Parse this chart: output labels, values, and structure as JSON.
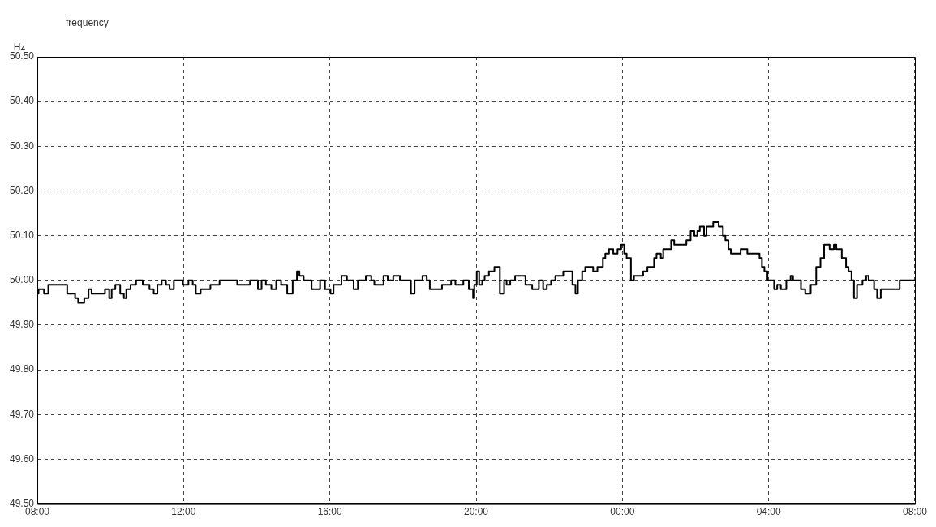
{
  "chart_data": {
    "type": "step",
    "title": "frequency",
    "ylabel": "Hz",
    "x": [
      "2000-01-01T08:00",
      "2000-01-01T08:02",
      "2000-01-01T08:11",
      "2000-01-01T08:18",
      "2000-01-01T08:49",
      "2000-01-01T09:02",
      "2000-01-01T09:07",
      "2000-01-01T09:17",
      "2000-01-01T09:24",
      "2000-01-01T09:29",
      "2000-01-01T09:51",
      "2000-01-01T09:58",
      "2000-01-01T10:02",
      "2000-01-01T10:08",
      "2000-01-01T10:16",
      "2000-01-01T10:22",
      "2000-01-01T10:26",
      "2000-01-01T10:33",
      "2000-01-01T10:42",
      "2000-01-01T10:53",
      "2000-01-01T11:04",
      "2000-01-01T11:11",
      "2000-01-01T11:17",
      "2000-01-01T11:24",
      "2000-01-01T11:31",
      "2000-01-01T11:37",
      "2000-01-01T11:44",
      "2000-01-01T11:59",
      "2000-01-01T12:08",
      "2000-01-01T12:15",
      "2000-01-01T12:20",
      "2000-01-01T12:28",
      "2000-01-01T12:44",
      "2000-01-01T12:59",
      "2000-01-01T13:28",
      "2000-01-01T13:49",
      "2000-01-01T14:02",
      "2000-01-01T14:08",
      "2000-01-01T14:15",
      "2000-01-01T14:24",
      "2000-01-01T14:32",
      "2000-01-01T14:40",
      "2000-01-01T14:50",
      "2000-01-01T14:59",
      "2000-01-01T15:06",
      "2000-01-01T15:10",
      "2000-01-01T15:17",
      "2000-01-01T15:30",
      "2000-01-01T15:44",
      "2000-01-01T15:52",
      "2000-01-01T16:01",
      "2000-01-01T16:06",
      "2000-01-01T16:13",
      "2000-01-01T16:19",
      "2000-01-01T16:28",
      "2000-01-01T16:39",
      "2000-01-01T16:46",
      "2000-01-01T16:59",
      "2000-01-01T17:08",
      "2000-01-01T17:13",
      "2000-01-01T17:28",
      "2000-01-01T17:35",
      "2000-01-01T17:44",
      "2000-01-01T17:55",
      "2000-01-01T18:13",
      "2000-01-01T18:19",
      "2000-01-01T18:32",
      "2000-01-01T18:39",
      "2000-01-01T18:44",
      "2000-01-01T19:04",
      "2000-01-01T19:19",
      "2000-01-01T19:26",
      "2000-01-01T19:39",
      "2000-01-01T19:48",
      "2000-01-01T19:55",
      "2000-01-01T19:57",
      "2000-01-01T20:01",
      "2000-01-01T20:05",
      "2000-01-01T20:10",
      "2000-01-01T20:14",
      "2000-01-01T20:21",
      "2000-01-01T20:30",
      "2000-01-01T20:39",
      "2000-01-01T20:46",
      "2000-01-01T20:50",
      "2000-01-01T20:56",
      "2000-01-01T21:04",
      "2000-01-01T21:21",
      "2000-01-01T21:32",
      "2000-01-01T21:43",
      "2000-01-01T21:50",
      "2000-01-01T21:56",
      "2000-01-01T22:03",
      "2000-01-01T22:10",
      "2000-01-01T22:19",
      "2000-01-01T22:23",
      "2000-01-01T22:38",
      "2000-01-01T22:43",
      "2000-01-01T22:47",
      "2000-01-01T22:54",
      "2000-01-01T22:59",
      "2000-01-01T23:12",
      "2000-01-01T23:19",
      "2000-01-01T23:28",
      "2000-01-01T23:32",
      "2000-01-01T23:38",
      "2000-01-01T23:45",
      "2000-01-01T23:52",
      "2000-01-01T23:58",
      "2000-01-02T00:03",
      "2000-01-02T00:07",
      "2000-01-02T00:14",
      "2000-01-02T00:19",
      "2000-01-02T00:34",
      "2000-01-02T00:41",
      "2000-01-02T00:52",
      "2000-01-02T00:56",
      "2000-01-02T01:03",
      "2000-01-02T01:07",
      "2000-01-02T01:20",
      "2000-01-02T01:25",
      "2000-01-02T01:45",
      "2000-01-02T01:52",
      "2000-01-02T01:58",
      "2000-01-02T02:03",
      "2000-01-02T02:07",
      "2000-01-02T02:14",
      "2000-01-02T02:18",
      "2000-01-02T02:23",
      "2000-01-02T02:29",
      "2000-01-02T02:38",
      "2000-01-02T02:45",
      "2000-01-02T02:49",
      "2000-01-02T02:54",
      "2000-01-02T02:58",
      "2000-01-02T03:14",
      "2000-01-02T03:25",
      "2000-01-02T03:45",
      "2000-01-02T03:49",
      "2000-01-02T03:53",
      "2000-01-02T03:58",
      "2000-01-02T04:09",
      "2000-01-02T04:14",
      "2000-01-02T04:20",
      "2000-01-02T04:29",
      "2000-01-02T04:36",
      "2000-01-02T04:40",
      "2000-01-02T04:53",
      "2000-01-02T05:00",
      "2000-01-02T05:09",
      "2000-01-02T05:18",
      "2000-01-02T05:25",
      "2000-01-02T05:31",
      "2000-01-02T05:40",
      "2000-01-02T05:47",
      "2000-01-02T05:51",
      "2000-01-02T06:00",
      "2000-01-02T06:07",
      "2000-01-02T06:11",
      "2000-01-02T06:16",
      "2000-01-02T06:20",
      "2000-01-02T06:25",
      "2000-01-02T06:34",
      "2000-01-02T06:40",
      "2000-01-02T06:44",
      "2000-01-02T06:53",
      "2000-01-02T06:58",
      "2000-01-02T07:04",
      "2000-01-02T07:35",
      "2000-01-02T07:44",
      "2000-01-02T08:00"
    ],
    "series": [
      {
        "color": "#000000",
        "values": [
          50.0,
          49.97,
          49.98,
          49.97,
          49.99,
          49.97,
          49.96,
          49.95,
          49.96,
          49.98,
          49.97,
          49.98,
          49.96,
          49.98,
          49.99,
          49.97,
          49.96,
          49.98,
          49.99,
          50.0,
          49.99,
          49.98,
          49.97,
          49.99,
          50.0,
          49.99,
          49.98,
          50.0,
          49.99,
          50.0,
          49.99,
          49.97,
          49.98,
          49.99,
          50.0,
          49.99,
          50.0,
          49.98,
          50.0,
          49.99,
          49.98,
          50.0,
          49.99,
          49.97,
          50.0,
          50.02,
          50.01,
          50.0,
          49.98,
          50.0,
          49.98,
          49.97,
          49.99,
          49.99,
          50.01,
          50.0,
          49.98,
          50.0,
          50.01,
          50.0,
          49.99,
          50.01,
          50.0,
          50.01,
          50.0,
          49.97,
          50.0,
          50.01,
          50.0,
          49.98,
          49.99,
          50.0,
          49.99,
          50.0,
          49.98,
          49.96,
          49.99,
          50.02,
          49.99,
          50.0,
          50.01,
          50.02,
          50.03,
          49.97,
          50.0,
          49.99,
          50.0,
          50.01,
          49.99,
          49.98,
          50.0,
          49.98,
          49.99,
          50.0,
          50.01,
          50.01,
          50.02,
          49.99,
          49.97,
          50.0,
          50.02,
          50.03,
          50.02,
          50.03,
          50.05,
          50.06,
          50.07,
          50.06,
          50.07,
          50.08,
          50.06,
          50.05,
          50.0,
          50.01,
          50.02,
          50.03,
          50.05,
          50.06,
          50.05,
          50.07,
          50.09,
          50.08,
          50.09,
          50.11,
          50.1,
          50.11,
          50.12,
          50.1,
          50.12,
          50.12,
          50.13,
          50.12,
          50.1,
          50.09,
          50.07,
          50.06,
          50.07,
          50.06,
          50.05,
          50.03,
          50.02,
          50.0,
          49.98,
          49.99,
          49.98,
          50.0,
          50.01,
          50.0,
          49.98,
          49.97,
          49.99,
          50.03,
          50.05,
          50.08,
          50.07,
          50.08,
          50.07,
          50.05,
          50.03,
          50.02,
          50.0,
          49.96,
          49.99,
          50.0,
          50.01,
          50.0,
          49.98,
          49.96,
          49.98,
          50.0,
          50.0
        ]
      }
    ],
    "xlim": [
      "2000-01-01T08:00",
      "2000-01-02T08:00"
    ],
    "xticks": [
      {
        "value": "2000-01-01T08:00",
        "label": "08:00"
      },
      {
        "value": "2000-01-01T12:00",
        "label": "12:00"
      },
      {
        "value": "2000-01-01T16:00",
        "label": "16:00"
      },
      {
        "value": "2000-01-01T20:00",
        "label": "20:00"
      },
      {
        "value": "2000-01-02T00:00",
        "label": "00:00"
      },
      {
        "value": "2000-01-02T04:00",
        "label": "04:00"
      },
      {
        "value": "2000-01-02T08:00",
        "label": "08:00"
      }
    ],
    "ylim": [
      49.5,
      50.5
    ],
    "yticks": [
      {
        "value": 49.5,
        "label": "49.50"
      },
      {
        "value": 49.6,
        "label": "49.60"
      },
      {
        "value": 49.7,
        "label": "49.70"
      },
      {
        "value": 49.8,
        "label": "49.80"
      },
      {
        "value": 49.9,
        "label": "49.90"
      },
      {
        "value": 50.0,
        "label": "50.00"
      },
      {
        "value": 50.1,
        "label": "50.10"
      },
      {
        "value": 50.2,
        "label": "50.20"
      },
      {
        "value": 50.3,
        "label": "50.30"
      },
      {
        "value": 50.4,
        "label": "50.40"
      },
      {
        "value": 50.5,
        "label": "50.50"
      }
    ],
    "grid": true,
    "legend": false,
    "marker": "none",
    "line_style": "solid"
  }
}
